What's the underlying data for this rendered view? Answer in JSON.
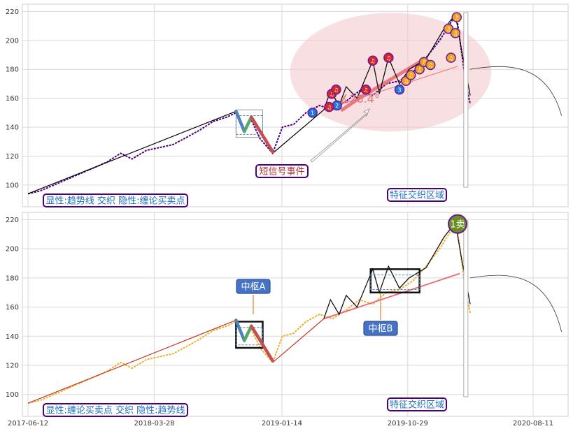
{
  "chart_data": [
    {
      "type": "line",
      "panel": "top",
      "ylim": [
        85,
        225
      ],
      "yticks": [
        100,
        120,
        140,
        160,
        180,
        200,
        220
      ],
      "x_range": [
        "2017-05-30",
        "2020-10-30"
      ],
      "grid": true,
      "series": [
        {
          "color": "#4b0082",
          "x": [
            "2017-06-12",
            "2017-07-10",
            "2017-08-10",
            "2017-09-10",
            "2017-10-10",
            "2017-11-10",
            "2017-12-10",
            "2018-01-10",
            "2018-02-05",
            "2018-03-10",
            "2018-04-10",
            "2018-05-10",
            "2018-06-10",
            "2018-07-10",
            "2018-08-10",
            "2018-09-10",
            "2018-10-01",
            "2018-10-20",
            "2018-11-05",
            "2018-11-25",
            "2018-12-24",
            "2019-01-15",
            "2019-02-10",
            "2019-03-10",
            "2019-04-10",
            "2019-05-10",
            "2019-06-10",
            "2019-07-10",
            "2019-08-10",
            "2019-09-10",
            "2019-10-10",
            "2019-11-10",
            "2019-12-10",
            "2020-01-10",
            "2020-02-10",
            "2020-02-20",
            "2020-03-10",
            "2020-03-20"
          ],
          "values": [
            94,
            96,
            100,
            104,
            108,
            112,
            116,
            122,
            118,
            124,
            126,
            128,
            133,
            138,
            144,
            147,
            150,
            138,
            145,
            132,
            122,
            140,
            142,
            150,
            155,
            152,
            158,
            165,
            162,
            170,
            172,
            178,
            188,
            200,
            215,
            212,
            170,
            156
          ]
        }
      ],
      "overlay": {
        "trend_lines": [
          {
            "color": "#000000",
            "points": [
              [
                "2017-06-12",
                94
              ],
              [
                "2018-10-01",
                151
              ]
            ]
          },
          {
            "color": "#000000",
            "points": [
              [
                "2018-12-24",
                122
              ],
              [
                "2019-04-20",
                152
              ]
            ]
          },
          {
            "color": "#f08080",
            "points": [
              [
                "2019-04-20",
                152
              ],
              [
                "2020-02-20",
                182
              ]
            ]
          }
        ],
        "zigzag": [
          [
            "2019-04-20",
            152
          ],
          [
            "2019-05-05",
            165
          ],
          [
            "2019-05-25",
            155
          ],
          [
            "2019-06-10",
            168
          ],
          [
            "2019-07-05",
            160
          ],
          [
            "2019-08-10",
            186
          ],
          [
            "2019-08-25",
            163
          ],
          [
            "2019-09-15",
            188
          ],
          [
            "2019-10-10",
            170
          ],
          [
            "2019-11-01",
            180
          ],
          [
            "2019-12-10",
            187
          ],
          [
            "2020-01-20",
            208
          ],
          [
            "2020-02-15",
            218
          ],
          [
            "2020-03-01",
            192
          ],
          [
            "2020-03-20",
            162
          ]
        ],
        "pivot_box": {
          "color": "#4f81bd",
          "x": [
            "2018-10-01",
            "2018-12-01"
          ],
          "y": [
            133,
            152
          ]
        },
        "bi_strokes": [
          {
            "color": "#4f81bd",
            "points": [
              [
                "2018-10-01",
                151
              ],
              [
                "2018-10-20",
                137
              ]
            ]
          },
          {
            "color": "#55a868",
            "points": [
              [
                "2018-10-20",
                137
              ],
              [
                "2018-11-05",
                147
              ]
            ]
          },
          {
            "color": "#c44e52",
            "points": [
              [
                "2018-11-05",
                147
              ],
              [
                "2018-12-24",
                123
              ]
            ]
          }
        ],
        "ellipse": {
          "color": "#f2c4c9",
          "center": [
            "2019-09-20",
            178
          ],
          "rx_days": 230,
          "ry": 41
        },
        "highlight_lines": [
          {
            "color": "#e8707b",
            "points": [
              [
                "2019-06-01",
                152
              ],
              [
                "2019-07-10",
                160
              ]
            ]
          },
          {
            "color": "#e8707b",
            "points": [
              [
                "2019-07-10",
                160
              ],
              [
                "2019-11-25",
                185
              ]
            ]
          }
        ],
        "markers": [
          {
            "type": "buy",
            "label": "1",
            "x": "2019-03-25",
            "y": 150
          },
          {
            "type": "buy",
            "label": "2",
            "x": "2019-05-20",
            "y": 155
          },
          {
            "type": "buy",
            "label": "3",
            "x": "2019-10-10",
            "y": 166
          },
          {
            "type": "sell",
            "label": "♫",
            "x": "2019-05-08",
            "y": 163
          },
          {
            "type": "sell",
            "label": "♫",
            "x": "2019-05-18",
            "y": 166
          },
          {
            "type": "sell",
            "label": "♫",
            "x": "2019-05-02",
            "y": 154
          },
          {
            "type": "sell",
            "label": "♫",
            "x": "2019-08-10",
            "y": 186
          },
          {
            "type": "sell",
            "label": "♫",
            "x": "2019-07-25",
            "y": 166
          },
          {
            "type": "sell",
            "label": "♫",
            "x": "2019-09-15",
            "y": 188
          },
          {
            "type": "signal",
            "label": "♫",
            "x": "2019-10-25",
            "y": 172
          },
          {
            "type": "signal",
            "label": "♫",
            "x": "2019-11-05",
            "y": 176
          },
          {
            "type": "signal",
            "label": "♫",
            "x": "2019-11-25",
            "y": 180
          },
          {
            "type": "signal",
            "label": "♫",
            "x": "2019-12-05",
            "y": 185
          },
          {
            "type": "signal",
            "label": "♫",
            "x": "2019-12-20",
            "y": 183
          },
          {
            "type": "signal",
            "label": "♫",
            "x": "2020-01-30",
            "y": 208
          },
          {
            "type": "signal",
            "label": "♫",
            "x": "2020-02-18",
            "y": 216
          },
          {
            "type": "signal",
            "label": "♫",
            "x": "2020-02-15",
            "y": 205
          },
          {
            "type": "signal",
            "label": "♫",
            "x": "2020-02-05",
            "y": 188
          }
        ],
        "annotations": {
          "short_signal_event": "短信号事件",
          "angle_label": "∡26.4°",
          "feature_zone": "特征交织区域",
          "legend_box": "显性:趋势线 交织 隐性:缠论买卖点"
        }
      }
    },
    {
      "type": "line",
      "panel": "bottom",
      "ylim": [
        85,
        225
      ],
      "yticks": [
        100,
        120,
        140,
        160,
        180,
        200,
        220
      ],
      "x_range": [
        "2017-05-30",
        "2020-10-30"
      ],
      "xticks": [
        "2017-06-12",
        "2018-03-28",
        "2019-01-14",
        "2019-10-29",
        "2020-08-11"
      ],
      "grid": true,
      "series": [
        {
          "color": "#f0b030",
          "x": [
            "2017-06-12",
            "2017-07-10",
            "2017-08-10",
            "2017-09-10",
            "2017-10-10",
            "2017-11-10",
            "2017-12-10",
            "2018-01-10",
            "2018-02-05",
            "2018-03-10",
            "2018-04-10",
            "2018-05-10",
            "2018-06-10",
            "2018-07-10",
            "2018-08-10",
            "2018-09-10",
            "2018-10-01",
            "2018-10-20",
            "2018-11-05",
            "2018-11-25",
            "2018-12-24",
            "2019-01-15",
            "2019-02-10",
            "2019-03-10",
            "2019-04-10",
            "2019-05-10",
            "2019-06-10",
            "2019-07-10",
            "2019-08-10",
            "2019-09-10",
            "2019-10-10",
            "2019-11-10",
            "2019-12-10",
            "2020-01-10",
            "2020-02-10",
            "2020-02-20",
            "2020-03-10",
            "2020-03-20"
          ],
          "values": [
            94,
            96,
            100,
            104,
            108,
            112,
            116,
            122,
            118,
            124,
            126,
            128,
            133,
            138,
            144,
            147,
            150,
            138,
            145,
            132,
            122,
            140,
            142,
            150,
            155,
            152,
            158,
            165,
            162,
            170,
            172,
            178,
            188,
            200,
            215,
            212,
            170,
            156
          ]
        }
      ],
      "overlay": {
        "trend_lines": [
          {
            "color": "#c0392b",
            "points": [
              [
                "2017-06-12",
                94
              ],
              [
                "2018-10-01",
                151
              ]
            ]
          },
          {
            "color": "#c0392b",
            "points": [
              [
                "2018-12-24",
                122
              ],
              [
                "2019-04-20",
                152
              ]
            ]
          },
          {
            "color": "#e8707b",
            "points": [
              [
                "2019-04-20",
                152
              ],
              [
                "2020-02-25",
                183
              ]
            ]
          }
        ],
        "zigzag": [
          [
            "2019-04-20",
            152
          ],
          [
            "2019-05-05",
            165
          ],
          [
            "2019-05-25",
            155
          ],
          [
            "2019-06-10",
            168
          ],
          [
            "2019-07-05",
            160
          ],
          [
            "2019-08-10",
            186
          ],
          [
            "2019-08-25",
            170
          ],
          [
            "2019-09-15",
            188
          ],
          [
            "2019-10-10",
            173
          ],
          [
            "2019-11-01",
            180
          ],
          [
            "2019-12-10",
            187
          ],
          [
            "2020-01-20",
            208
          ],
          [
            "2020-02-15",
            218
          ],
          [
            "2020-03-01",
            192
          ],
          [
            "2020-03-20",
            162
          ]
        ],
        "pivot_boxes": [
          {
            "label": "中枢A",
            "x": [
              "2018-10-01",
              "2018-12-01"
            ],
            "y": [
              132,
              150
            ]
          },
          {
            "label": "中枢B",
            "x": [
              "2019-08-05",
              "2019-11-25"
            ],
            "y": [
              170,
              186
            ]
          }
        ],
        "bi_strokes": [
          {
            "color": "#4f81bd",
            "points": [
              [
                "2018-10-01",
                151
              ],
              [
                "2018-10-20",
                137
              ]
            ]
          },
          {
            "color": "#55a868",
            "points": [
              [
                "2018-10-20",
                137
              ],
              [
                "2018-11-05",
                147
              ]
            ]
          },
          {
            "color": "#c44e52",
            "points": [
              [
                "2018-11-05",
                147
              ],
              [
                "2018-12-24",
                123
              ]
            ]
          }
        ],
        "sell_point": {
          "label": "1卖",
          "x": "2020-02-20",
          "y": 217
        },
        "annotations": {
          "feature_zone": "特征交织区域",
          "legend_box": "显性:缠论买卖点 交织 隐性:趋势线"
        }
      }
    }
  ]
}
